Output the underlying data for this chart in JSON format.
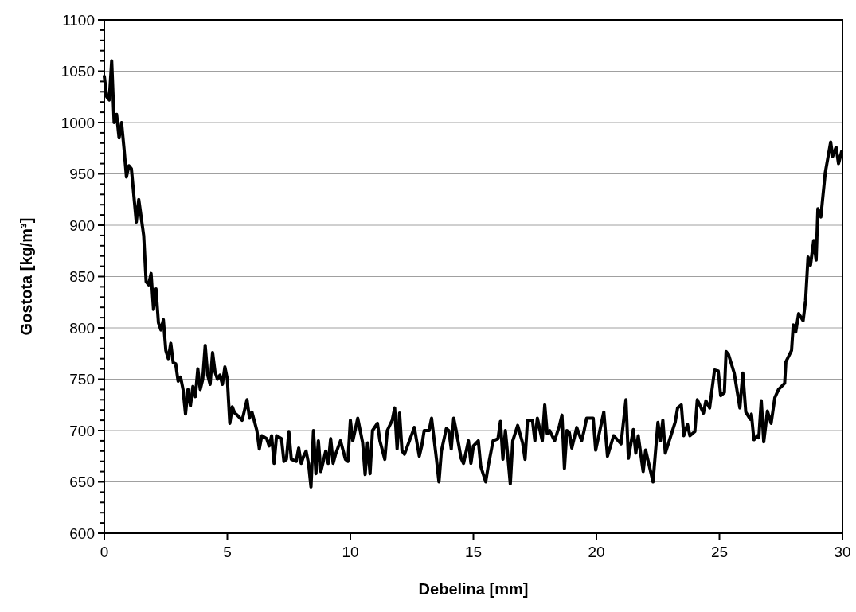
{
  "chart_data": {
    "type": "line",
    "xlabel": "Debelina [mm]",
    "ylabel": "Gostota [kg/m³]",
    "xlim": [
      0,
      30
    ],
    "xticks": [
      0,
      5,
      10,
      15,
      20,
      25,
      30
    ],
    "ylim": [
      600,
      1100
    ],
    "yticks": [
      600,
      {
        "value": 610,
        "label": null
      },
      {
        "value": 620,
        "label": null
      },
      {
        "value": 630,
        "label": null
      },
      {
        "value": 640,
        "label": null
      },
      650,
      {
        "value": 660,
        "label": null
      },
      {
        "value": 670,
        "label": null
      },
      {
        "value": 680,
        "label": null
      },
      {
        "value": 690,
        "label": null
      },
      700,
      {
        "value": 710,
        "label": null
      },
      {
        "value": 720,
        "label": null
      },
      {
        "value": 730,
        "label": null
      },
      {
        "value": 740,
        "label": null
      },
      750,
      {
        "value": 760,
        "label": null
      },
      {
        "value": 770,
        "label": null
      },
      {
        "value": 780,
        "label": null
      },
      {
        "value": 790,
        "label": null
      },
      800,
      {
        "value": 810,
        "label": null
      },
      {
        "value": 820,
        "label": null
      },
      {
        "value": 830,
        "label": null
      },
      {
        "value": 840,
        "label": null
      },
      850,
      {
        "value": 860,
        "label": null
      },
      {
        "value": 870,
        "label": null
      },
      {
        "value": 880,
        "label": null
      },
      {
        "value": 890,
        "label": null
      },
      900,
      {
        "value": 910,
        "label": null
      },
      {
        "value": 920,
        "label": null
      },
      {
        "value": 930,
        "label": null
      },
      {
        "value": 940,
        "label": null
      },
      950,
      {
        "value": 960,
        "label": null
      },
      {
        "value": 970,
        "label": null
      },
      {
        "value": 980,
        "label": null
      },
      {
        "value": 990,
        "label": null
      },
      1000,
      {
        "value": 1010,
        "label": null
      },
      {
        "value": 1020,
        "label": null
      },
      {
        "value": 1030,
        "label": null
      },
      {
        "value": 1040,
        "label": null
      },
      1050,
      {
        "value": 1060,
        "label": null
      },
      {
        "value": 1070,
        "label": null
      },
      {
        "value": 1080,
        "label": null
      },
      {
        "value": 1090,
        "label": null
      },
      1100
    ],
    "grid": "y",
    "marker": "none",
    "line_style": "solid",
    "series": [
      {
        "color": "#000000",
        "x": [
          0,
          0.1,
          0.2,
          0.3,
          0.4,
          0.5,
          0.6,
          0.7,
          0.8,
          0.9,
          1.0,
          1.1,
          1.3,
          1.4,
          1.6,
          1.7,
          1.8,
          1.9,
          2.0,
          2.1,
          2.2,
          2.3,
          2.4,
          2.5,
          2.6,
          2.7,
          2.8,
          2.9,
          3.0,
          3.1,
          3.2,
          3.3,
          3.4,
          3.5,
          3.6,
          3.7,
          3.8,
          3.9,
          4.0,
          4.1,
          4.2,
          4.3,
          4.4,
          4.5,
          4.6,
          4.7,
          4.8,
          4.9,
          5.0,
          5.1,
          5.2,
          5.3,
          5.4,
          5.6,
          5.8,
          5.9,
          6.0,
          6.2,
          6.3,
          6.4,
          6.6,
          6.7,
          6.8,
          6.9,
          7.0,
          7.2,
          7.3,
          7.4,
          7.5,
          7.6,
          7.8,
          7.9,
          8.0,
          8.1,
          8.2,
          8.3,
          8.4,
          8.5,
          8.6,
          8.7,
          8.8,
          9.0,
          9.1,
          9.2,
          9.3,
          9.4,
          9.6,
          9.8,
          9.9,
          10.0,
          10.1,
          10.3,
          10.5,
          10.6,
          10.7,
          10.8,
          10.9,
          11.1,
          11.2,
          11.4,
          11.5,
          11.7,
          11.8,
          11.9,
          12.0,
          12.1,
          12.2,
          12.4,
          12.6,
          12.8,
          12.9,
          13.0,
          13.2,
          13.3,
          13.5,
          13.6,
          13.7,
          13.9,
          14.0,
          14.1,
          14.2,
          14.3,
          14.5,
          14.6,
          14.8,
          14.9,
          15.0,
          15.2,
          15.3,
          15.5,
          15.6,
          15.8,
          16.0,
          16.1,
          16.2,
          16.3,
          16.4,
          16.5,
          16.6,
          16.8,
          17.0,
          17.1,
          17.2,
          17.4,
          17.5,
          17.6,
          17.8,
          17.9,
          18.0,
          18.1,
          18.3,
          18.5,
          18.6,
          18.7,
          18.8,
          18.9,
          19.0,
          19.2,
          19.4,
          19.5,
          19.6,
          19.87,
          19.97,
          20.3,
          20.45,
          20.7,
          21.0,
          21.2,
          21.3,
          21.5,
          21.6,
          21.7,
          21.9,
          22.0,
          22.3,
          22.5,
          22.6,
          22.7,
          22.8,
          23.2,
          23.3,
          23.45,
          23.55,
          23.7,
          23.8,
          24.0,
          24.1,
          24.35,
          24.45,
          24.6,
          24.8,
          24.95,
          25.05,
          25.2,
          25.27,
          25.37,
          25.6,
          25.83,
          25.95,
          26.07,
          26.25,
          26.3,
          26.4,
          26.55,
          26.6,
          26.7,
          26.8,
          26.95,
          27.1,
          27.25,
          27.4,
          27.65,
          27.7,
          27.93,
          28.0,
          28.1,
          28.22,
          28.4,
          28.5,
          28.6,
          28.7,
          28.83,
          28.93,
          29.0,
          29.12,
          29.3,
          29.52,
          29.6,
          29.74,
          29.84,
          29.97
        ],
        "values": [
          1045,
          1025,
          1022,
          1060,
          1000,
          1008,
          985,
          1000,
          975,
          947,
          958,
          955,
          903,
          925,
          890,
          845,
          842,
          853,
          818,
          838,
          805,
          798,
          808,
          778,
          770,
          785,
          766,
          765,
          748,
          752,
          740,
          716,
          740,
          724,
          743,
          733,
          760,
          740,
          750,
          783,
          754,
          745,
          776,
          757,
          750,
          754,
          745,
          762,
          750,
          707,
          723,
          717,
          715,
          710,
          730,
          712,
          718,
          700,
          682,
          695,
          692,
          685,
          695,
          668,
          695,
          692,
          670,
          672,
          699,
          672,
          670,
          683,
          668,
          675,
          680,
          668,
          645,
          700,
          658,
          690,
          660,
          680,
          668,
          692,
          668,
          677,
          690,
          672,
          670,
          710,
          690,
          712,
          688,
          657,
          688,
          658,
          700,
          707,
          690,
          672,
          700,
          710,
          722,
          682,
          717,
          680,
          677,
          690,
          703,
          675,
          685,
          700,
          700,
          712,
          672,
          650,
          680,
          702,
          700,
          682,
          712,
          700,
          673,
          668,
          690,
          668,
          685,
          690,
          665,
          650,
          665,
          690,
          692,
          709,
          672,
          700,
          675,
          648,
          690,
          705,
          688,
          672,
          710,
          710,
          690,
          712,
          690,
          725,
          697,
          700,
          690,
          705,
          715,
          663,
          700,
          698,
          683,
          703,
          690,
          700,
          712,
          712,
          681,
          718,
          675,
          695,
          687,
          730,
          673,
          701,
          678,
          695,
          660,
          681,
          650,
          708,
          690,
          710,
          678,
          708,
          722,
          725,
          695,
          706,
          695,
          699,
          730,
          717,
          729,
          722,
          759,
          758,
          734,
          737,
          777,
          774,
          756,
          722,
          756,
          718,
          711,
          716,
          691,
          695,
          693,
          729,
          689,
          719,
          707,
          732,
          740,
          746,
          767,
          778,
          803,
          796,
          814,
          807,
          827,
          869,
          861,
          885,
          866,
          916,
          908,
          951,
          981,
          967,
          976,
          960,
          972
        ]
      }
    ]
  }
}
